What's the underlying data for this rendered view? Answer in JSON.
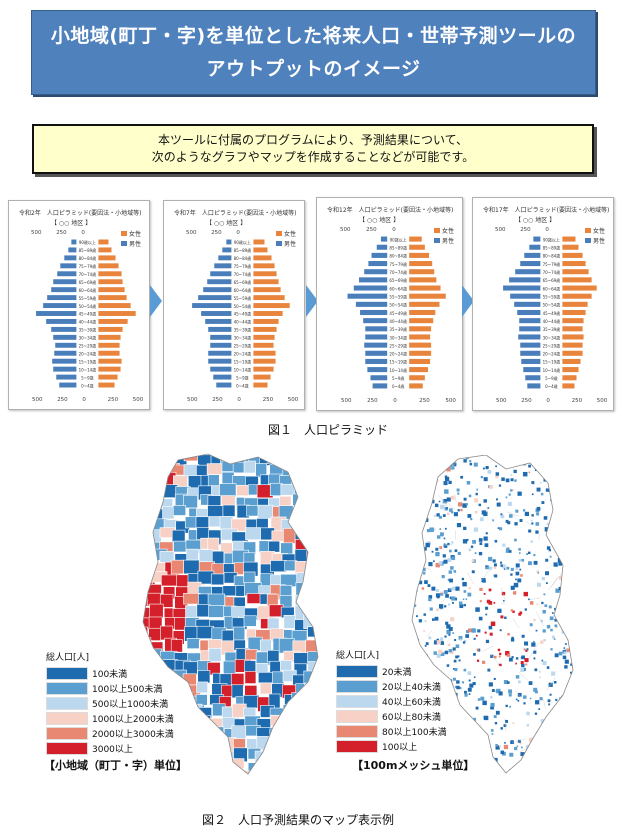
{
  "banner": {
    "line1": "小地域(町丁・字)を単位とした将来人口・世帯予測ツールの",
    "line2": "アウトプットのイメージ"
  },
  "note": {
    "line1": "本ツールに付属のプログラムにより、予測結果について、",
    "line2": "次のようなグラフやマップを作成することなどが可能です。"
  },
  "pyramids": [
    {
      "era": "令和2年",
      "title": "人口ピラミッド(要因法・小地域等)",
      "area": "【 ○○ 地区 】"
    },
    {
      "era": "令和7年",
      "title": "人口ピラミッド(要因法・小地域等)",
      "area": "【 ○○ 地区 】"
    },
    {
      "era": "令和12年",
      "title": "人口ピラミッド(要因法・小地域等)",
      "area": "【 ○○ 地区 】"
    },
    {
      "era": "令和17年",
      "title": "人口ピラミッド(要因法・小地域等)",
      "area": "【 ○○ 地区 】"
    }
  ],
  "chart_data": [
    {
      "type": "bar",
      "title": "令和2年 人口ピラミッド(要因法・小地域等)",
      "categories": [
        "0~4歳",
        "5~9歳",
        "10~14歳",
        "15~19歳",
        "20~24歳",
        "25~29歳",
        "30~34歳",
        "35~39歳",
        "40~44歳",
        "45~49歳",
        "50~54歳",
        "55~59歳",
        "60~64歳",
        "65~69歳",
        "70~74歳",
        "75~79歳",
        "80~84歳",
        "85~89歳",
        "90歳以上"
      ],
      "series": [
        {
          "name": "男性",
          "values": [
            170,
            200,
            230,
            240,
            220,
            210,
            230,
            250,
            300,
            400,
            330,
            290,
            250,
            230,
            190,
            160,
            120,
            80,
            50
          ]
        },
        {
          "name": "女性",
          "values": [
            160,
            190,
            220,
            230,
            210,
            210,
            220,
            240,
            290,
            370,
            320,
            280,
            260,
            240,
            230,
            200,
            170,
            130,
            100
          ]
        }
      ],
      "xticks": [
        500,
        250,
        0,
        250,
        500
      ]
    },
    {
      "type": "bar",
      "title": "令和7年 人口ピラミッド(要因法・小地域等)",
      "categories": [
        "0~4歳",
        "5~9歳",
        "10~14歳",
        "15~19歳",
        "20~24歳",
        "25~29歳",
        "30~34歳",
        "35~39歳",
        "40~44歳",
        "45~49歳",
        "50~54歳",
        "55~59歳",
        "60~64歳",
        "65~69歳",
        "70~74歳",
        "75~79歳",
        "80~84歳",
        "85~89歳",
        "90歳以上"
      ],
      "series": [
        {
          "name": "男性",
          "values": [
            150,
            180,
            210,
            230,
            230,
            210,
            210,
            230,
            260,
            300,
            390,
            330,
            280,
            240,
            210,
            170,
            130,
            90,
            50
          ]
        },
        {
          "name": "女性",
          "values": [
            140,
            170,
            200,
            220,
            220,
            200,
            210,
            230,
            250,
            290,
            360,
            310,
            270,
            250,
            230,
            210,
            180,
            140,
            110
          ]
        }
      ],
      "xticks": [
        500,
        250,
        0,
        250,
        500
      ]
    },
    {
      "type": "bar",
      "title": "令和12年 人口ピラミッド(要因法・小地域等)",
      "categories": [
        "0~4歳",
        "5~9歳",
        "10~14歳",
        "15~19歳",
        "20~24歳",
        "25~29歳",
        "30~34歳",
        "35~39歳",
        "40~44歳",
        "45~49歳",
        "50~54歳",
        "55~59歳",
        "60~64歳",
        "65~69歳",
        "70~74歳",
        "75~79歳",
        "80~84歳",
        "85~89歳",
        "90歳以上"
      ],
      "series": [
        {
          "name": "男性",
          "values": [
            140,
            160,
            190,
            210,
            210,
            220,
            210,
            210,
            230,
            260,
            300,
            380,
            320,
            270,
            220,
            180,
            150,
            100,
            60
          ]
        },
        {
          "name": "女性",
          "values": [
            130,
            150,
            180,
            200,
            210,
            210,
            200,
            210,
            230,
            250,
            290,
            350,
            300,
            260,
            240,
            220,
            190,
            150,
            120
          ]
        }
      ],
      "xticks": [
        500,
        250,
        0,
        250,
        500
      ]
    },
    {
      "type": "bar",
      "title": "令和17年 人口ピラミッド(要因法・小地域等)",
      "categories": [
        "0~4歳",
        "5~9歳",
        "10~14歳",
        "15~19歳",
        "20~24歳",
        "25~29歳",
        "30~34歳",
        "35~39歳",
        "40~44歳",
        "45~49歳",
        "50~54歳",
        "55~59歳",
        "60~64歳",
        "65~69歳",
        "70~74歳",
        "75~79歳",
        "80~84歳",
        "85~89歳",
        "90歳以上"
      ],
      "series": [
        {
          "name": "男性",
          "values": [
            130,
            150,
            170,
            190,
            200,
            200,
            220,
            210,
            210,
            230,
            260,
            300,
            370,
            310,
            250,
            200,
            160,
            110,
            70
          ]
        },
        {
          "name": "女性",
          "values": [
            120,
            140,
            160,
            180,
            200,
            200,
            210,
            200,
            210,
            230,
            250,
            290,
            340,
            290,
            260,
            230,
            200,
            160,
            130
          ]
        }
      ],
      "xticks": [
        500,
        250,
        0,
        250,
        500
      ]
    }
  ],
  "pyramid_colors": {
    "male": "#4a7ebb",
    "female": "#e8843c"
  },
  "legend_names": {
    "female": "女性",
    "male": "男性"
  },
  "caption1": "図１　人口ピラミッド",
  "map1": {
    "legend_title": "総人口[人]",
    "unit_label": "【小地域（町丁・字）単位】",
    "legend": [
      {
        "label": "100未満",
        "color": "#1f6bb0"
      },
      {
        "label": "100以上500未満",
        "color": "#5b9fd0"
      },
      {
        "label": "500以上1000未満",
        "color": "#bcd8ee"
      },
      {
        "label": "1000以上2000未満",
        "color": "#f7d1c5"
      },
      {
        "label": "2000以上3000未満",
        "color": "#e88873"
      },
      {
        "label": "3000以上",
        "color": "#d3202a"
      }
    ]
  },
  "map2": {
    "legend_title": "総人口[人]",
    "unit_label": "【100mメッシュ単位】",
    "legend": [
      {
        "label": "20未満",
        "color": "#1f6bb0"
      },
      {
        "label": "20以上40未満",
        "color": "#5b9fd0"
      },
      {
        "label": "40以上60未満",
        "color": "#bcd8ee"
      },
      {
        "label": "60以上80未満",
        "color": "#f7d1c5"
      },
      {
        "label": "80以上100未満",
        "color": "#e88873"
      },
      {
        "label": "100以上",
        "color": "#d3202a"
      }
    ]
  },
  "caption2": "図２　人口予測結果のマップ表示例"
}
